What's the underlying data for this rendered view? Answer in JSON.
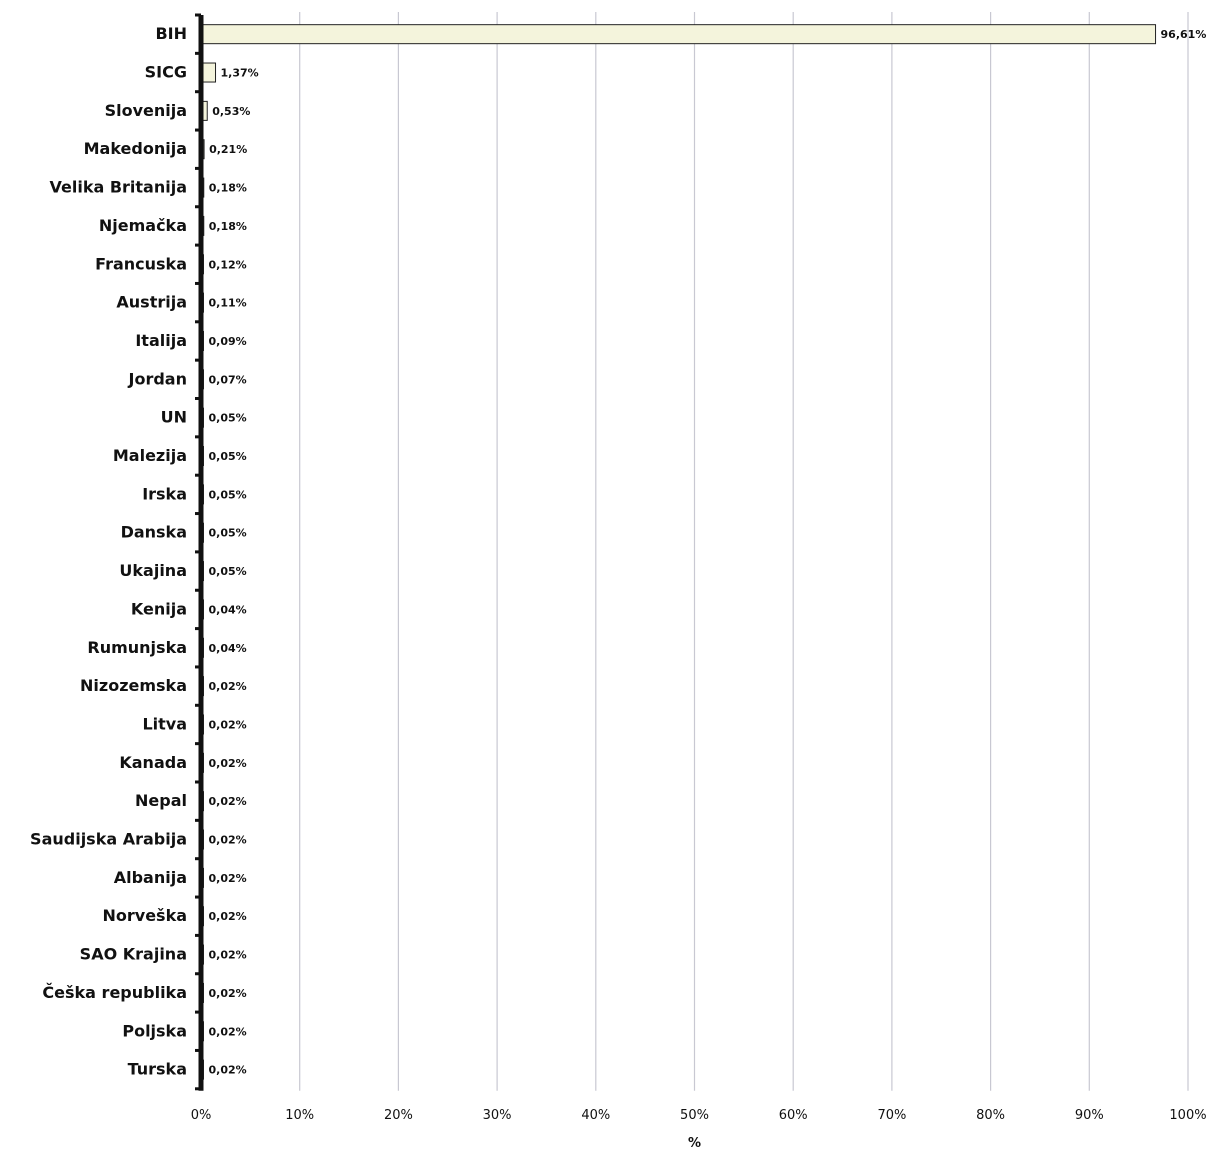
{
  "chart_data": {
    "type": "bar",
    "orientation": "horizontal",
    "categories": [
      "BIH",
      "SICG",
      "Slovenija",
      "Makedonija",
      "Velika Britanija",
      "Njemačka",
      "Francuska",
      "Austrija",
      "Italija",
      "Jordan",
      "UN",
      "Malezija",
      "Irska",
      "Danska",
      "Ukajina",
      "Kenija",
      "Rumunjska",
      "Nizozemska",
      "Litva",
      "Kanada",
      "Nepal",
      "Saudijska Arabija",
      "Albanija",
      "Norveška",
      "SAO Krajina",
      "Češka republika",
      "Poljska",
      "Turska"
    ],
    "values": [
      96.61,
      1.37,
      0.53,
      0.21,
      0.18,
      0.18,
      0.12,
      0.11,
      0.09,
      0.07,
      0.05,
      0.05,
      0.05,
      0.05,
      0.05,
      0.04,
      0.04,
      0.02,
      0.02,
      0.02,
      0.02,
      0.02,
      0.02,
      0.02,
      0.02,
      0.02,
      0.02,
      0.02
    ],
    "value_labels": [
      "96,61%",
      "1,37%",
      "0,53%",
      "0,21%",
      "0,18%",
      "0,18%",
      "0,12%",
      "0,11%",
      "0,09%",
      "0,07%",
      "0,05%",
      "0,05%",
      "0,05%",
      "0,05%",
      "0,05%",
      "0,04%",
      "0,04%",
      "0,02%",
      "0,02%",
      "0,02%",
      "0,02%",
      "0,02%",
      "0,02%",
      "0,02%",
      "0,02%",
      "0,02%",
      "0,02%",
      "0,02%"
    ],
    "xlabel": "%",
    "xlim": [
      0,
      100
    ],
    "x_ticks": [
      0,
      10,
      20,
      30,
      40,
      50,
      60,
      70,
      80,
      90,
      100
    ],
    "x_tick_labels": [
      "0%",
      "10%",
      "20%",
      "30%",
      "40%",
      "50%",
      "60%",
      "70%",
      "80%",
      "90%",
      "100%"
    ],
    "grid": true,
    "colors": {
      "bar_fill": "#f4f4dc",
      "bar_stroke": "#222222",
      "grid": "#c8c8d2",
      "axis": "#111111"
    }
  }
}
